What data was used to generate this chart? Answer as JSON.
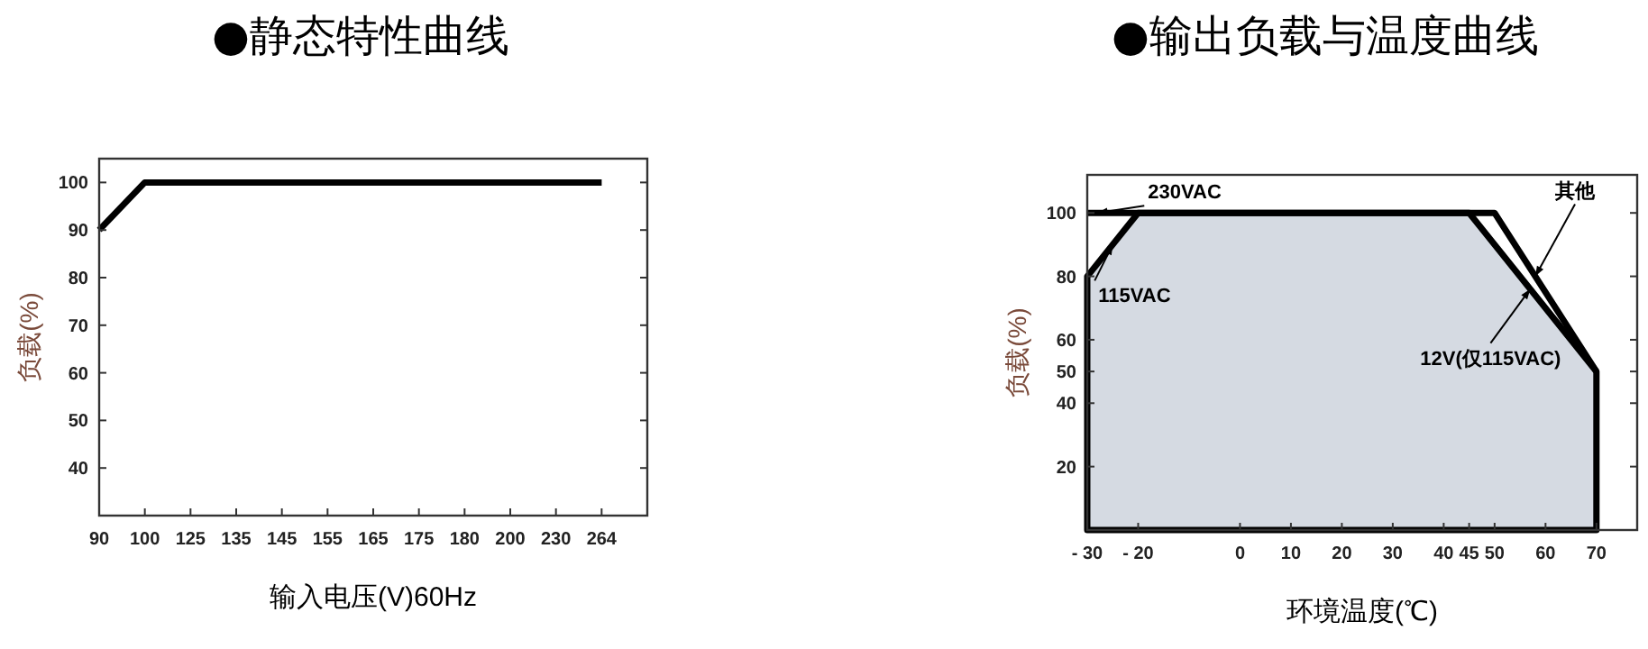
{
  "chart_data": [
    {
      "type": "line",
      "title": "●静态特性曲线",
      "xlabel": "输入电压(V)60Hz",
      "ylabel": "负载(%)",
      "categories": [
        "90",
        "100",
        "125",
        "135",
        "145",
        "155",
        "165",
        "175",
        "180",
        "200",
        "230",
        "264"
      ],
      "series": [
        {
          "color": "#000000",
          "values": [
            90,
            100,
            100,
            100,
            100,
            100,
            100,
            100,
            100,
            100,
            100,
            100
          ]
        }
      ],
      "ylim": [
        30,
        105
      ],
      "yticks": [
        40,
        50,
        60,
        70,
        80,
        90,
        100
      ],
      "grid": false
    },
    {
      "type": "line",
      "title": "●输出负载与温度曲线",
      "xlabel": "环境温度(℃)",
      "ylabel": "负载(%)",
      "xlim": [
        -30,
        78
      ],
      "xticks": [
        {
          "value": -30,
          "label": "- 30"
        },
        {
          "value": -20,
          "label": "- 20"
        },
        0,
        10,
        20,
        30,
        40,
        45,
        50,
        60,
        70
      ],
      "ylim": [
        0,
        112
      ],
      "yticks": [
        20,
        40,
        50,
        60,
        80,
        100
      ],
      "grid": false,
      "series": [
        {
          "type": "area",
          "color": "#d5dae2",
          "x": [
            -30,
            -20,
            45,
            70,
            70
          ],
          "values": [
            80,
            100,
            100,
            50,
            0
          ]
        },
        {
          "color": "#000000",
          "x": [
            -30,
            50,
            70
          ],
          "values": [
            100,
            100,
            50
          ]
        }
      ],
      "annotations": [
        {
          "text": "230VAC",
          "x": -28,
          "y": 100
        },
        {
          "text": "115VAC",
          "x": -25,
          "y": 90
        },
        {
          "text": "12V(仅115VAC)",
          "x": 57,
          "y": 76
        },
        {
          "text": "其他",
          "x": 58,
          "y": 80
        }
      ]
    }
  ]
}
